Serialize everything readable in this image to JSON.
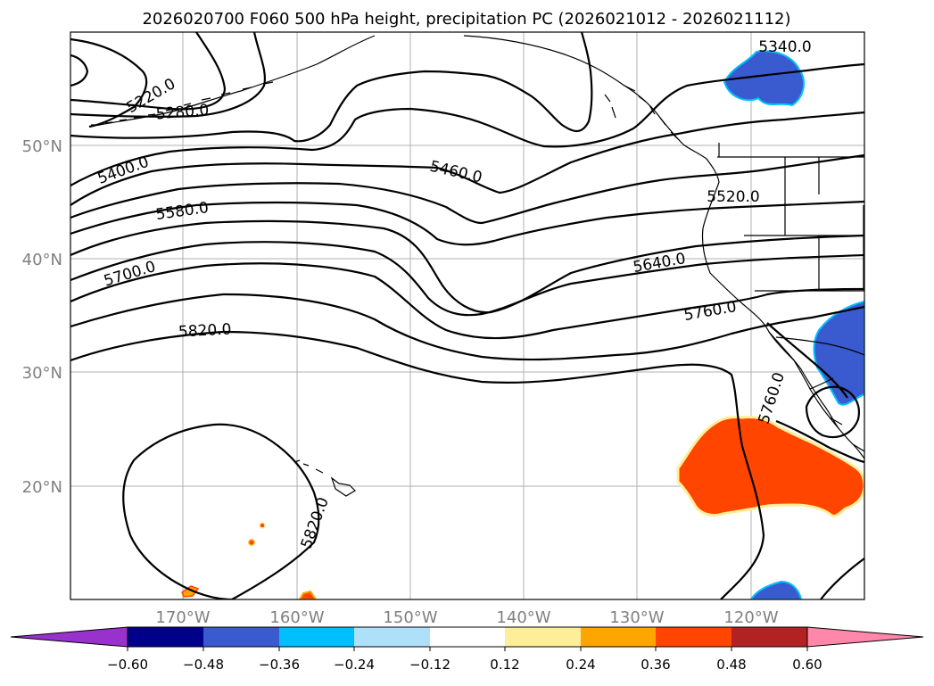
{
  "title": "2026020700 F060 500 hPa height, precipitation PC (2026021012 - 2026021112)",
  "lat_labels": [
    "20°N",
    "30°N",
    "40°N",
    "50°N"
  ],
  "lon_labels": [
    "170°W",
    "160°W",
    "150°W",
    "140°W",
    "130°W",
    "120°W"
  ],
  "contour_labels": {
    "c5220": "5220.0",
    "c5280": "5280.0",
    "c5340": "5340.0",
    "c5400": "5400.0",
    "c5460": "5460.0",
    "c5520": "5520.0",
    "c5580": "5580.0",
    "c5640": "5640.0",
    "c5700": "5700.0",
    "c5760a": "5760.0",
    "c5760b": "5760.0",
    "c5820a": "5820.0",
    "c5820b": "5820.0"
  },
  "colorbar": {
    "ticks": [
      "−0.60",
      "−0.48",
      "−0.36",
      "−0.24",
      "−0.12",
      "0.12",
      "0.24",
      "0.36",
      "0.48",
      "0.60"
    ],
    "colors": {
      "under": "#9932cc",
      "b1": "#00008b",
      "b2": "#3a5bcf",
      "b3": "#00bfff",
      "b4": "#afe0fa",
      "b5": "#ffffff",
      "b6": "#ffee99",
      "b7": "#ffa500",
      "b8": "#ff4500",
      "b9": "#b22222",
      "over": "#ff88aa"
    }
  },
  "colors": {
    "negative_precip": "#3a5bcf",
    "positive_precip": "#ff4500",
    "grid": "#b0b0b0",
    "contour": "#000000",
    "tick_label": "#808080"
  }
}
